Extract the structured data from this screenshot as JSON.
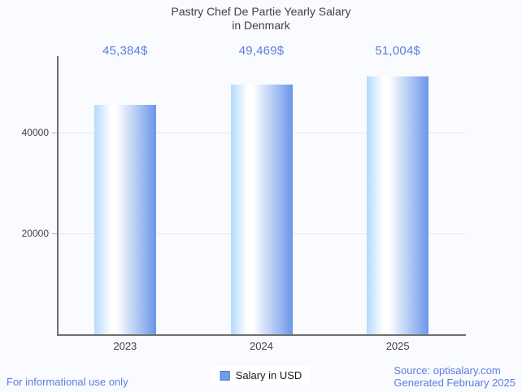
{
  "title": {
    "line1": "Pastry Chef De Partie Yearly Salary",
    "line2": "in Denmark"
  },
  "chart_data": {
    "type": "bar",
    "title": "Pastry Chef De Partie Yearly Salary in Denmark",
    "categories": [
      "2023",
      "2024",
      "2025"
    ],
    "series": [
      {
        "name": "Salary in USD",
        "values": [
          45384,
          49469,
          51004
        ]
      }
    ],
    "value_labels": [
      "45,384$",
      "49,469$",
      "51,004$"
    ],
    "xlabel": "",
    "ylabel": "",
    "yticks": [
      20000,
      40000
    ],
    "ytick_labels": [
      "20000",
      "40000"
    ],
    "ylim": [
      0,
      55100
    ],
    "grid": true,
    "legend_position": "bottom-center"
  },
  "legend": {
    "label": "Salary in USD"
  },
  "footer": {
    "note": "For informational use only",
    "source_line1": "Source: optisalary.com",
    "source_line2": "Generated February 2025"
  },
  "colors": {
    "accent_blue": "#5b7ce2",
    "title_gray": "#424242",
    "bar_gradient": [
      "#b3dafd",
      "#ffffff",
      "#6b96ea"
    ],
    "legend_square_fill": "#6d9eeb",
    "legend_square_border": "#4a7dbe",
    "axis_line": "#6f6f6f",
    "gridline": "#e7e7e7",
    "background": "#fafbfe"
  }
}
